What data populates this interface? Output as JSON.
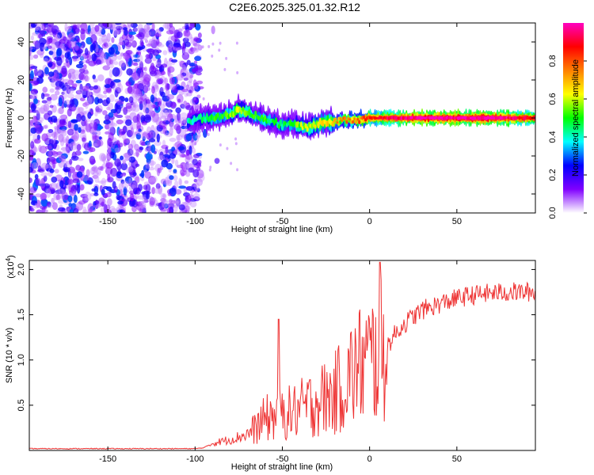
{
  "title": "C2E6.2025.325.01.32.R12",
  "chart_data": [
    {
      "type": "heatmap",
      "xlabel": "Height of straight line (km)",
      "ylabel": "Frequency (Hz)",
      "xlim": [
        -195,
        95
      ],
      "ylim": [
        -50,
        50
      ],
      "xticks": [
        -150,
        -100,
        -50,
        0,
        50
      ],
      "xtick_labels": [
        "-150",
        "-100",
        "-50",
        "0",
        "50"
      ],
      "yticks": [
        -40,
        -20,
        0,
        20,
        40
      ],
      "ytick_labels": [
        "-40",
        "-20",
        "0",
        "20",
        "40"
      ],
      "colorbar": {
        "label": "Normalized spectral amplitude",
        "range": [
          0,
          1
        ],
        "ticks": [
          0.0,
          0.2,
          0.4,
          0.6,
          0.8
        ],
        "tick_labels": [
          "0.0",
          "0.2",
          "0.4",
          "0.6",
          "0.8"
        ],
        "colors": [
          "#ffffff",
          "#8000ff",
          "#0000ff",
          "#00ffff",
          "#00ff00",
          "#ffff00",
          "#ff8000",
          "#ff0000",
          "#ff00c0"
        ]
      },
      "ridge": {
        "x": [
          -104,
          -95,
          -90,
          -85,
          -80,
          -75,
          -70,
          -65,
          -60,
          -55,
          -50,
          -45,
          -40,
          -35,
          -30,
          -25,
          -20,
          -15,
          -10,
          -5,
          0,
          10,
          20,
          30,
          40,
          50,
          60,
          70,
          80,
          90,
          95
        ],
        "frequency_hz": [
          -2,
          0,
          0,
          1,
          2,
          4,
          3,
          1,
          -1,
          -2,
          -4,
          -3,
          -4,
          -5,
          -3,
          -2,
          -2,
          -1,
          -1,
          -1,
          0,
          0,
          0,
          0,
          0,
          0,
          0,
          0,
          0,
          0,
          0
        ],
        "amplitude": [
          0.35,
          0.4,
          0.45,
          0.45,
          0.5,
          0.55,
          0.5,
          0.45,
          0.45,
          0.4,
          0.4,
          0.45,
          0.5,
          0.55,
          0.55,
          0.6,
          0.65,
          0.7,
          0.7,
          0.75,
          0.8,
          0.85,
          0.9,
          0.95,
          0.95,
          0.95,
          0.95,
          0.95,
          0.9,
          0.85,
          0.85
        ]
      },
      "noise_region": {
        "x_range": [
          -195,
          -97
        ],
        "amplitude": [
          0.05,
          0.3
        ]
      }
    },
    {
      "type": "line",
      "xlabel": "Height of straight line (km)",
      "ylabel": "SNR (10 * v/v)",
      "y_multiplier": "(x10^4)",
      "y_multiplier_base": "(x10",
      "y_multiplier_exp": "4",
      "y_multiplier_close": ")",
      "xlim": [
        -195,
        95
      ],
      "ylim": [
        0,
        2.1
      ],
      "xticks": [
        -150,
        -100,
        -50,
        0,
        50
      ],
      "xtick_labels": [
        "-150",
        "-100",
        "-50",
        "0",
        "50"
      ],
      "yticks": [
        0.5,
        1.0,
        1.5,
        2.0
      ],
      "ytick_labels": [
        "0.5",
        "1.0",
        "1.5",
        "2.0"
      ],
      "color": "#ee3333",
      "series": [
        {
          "name": "SNR",
          "x": [
            -195,
            -150,
            -100,
            -95,
            -90,
            -85,
            -80,
            -75,
            -70,
            -65,
            -60,
            -55,
            -50,
            -45,
            -40,
            -35,
            -30,
            -25,
            -20,
            -15,
            -10,
            -5,
            0,
            5,
            10,
            15,
            20,
            25,
            30,
            40,
            50,
            60,
            70,
            80,
            90,
            95
          ],
          "y": [
            0.02,
            0.02,
            0.02,
            0.03,
            0.08,
            0.1,
            0.12,
            0.15,
            0.18,
            0.25,
            0.35,
            0.38,
            0.4,
            0.42,
            0.45,
            0.5,
            0.55,
            0.58,
            0.62,
            0.75,
            0.85,
            0.95,
            1.0,
            1.05,
            1.15,
            1.3,
            1.4,
            1.48,
            1.55,
            1.62,
            1.68,
            1.72,
            1.74,
            1.75,
            1.75,
            1.75
          ]
        }
      ]
    }
  ]
}
